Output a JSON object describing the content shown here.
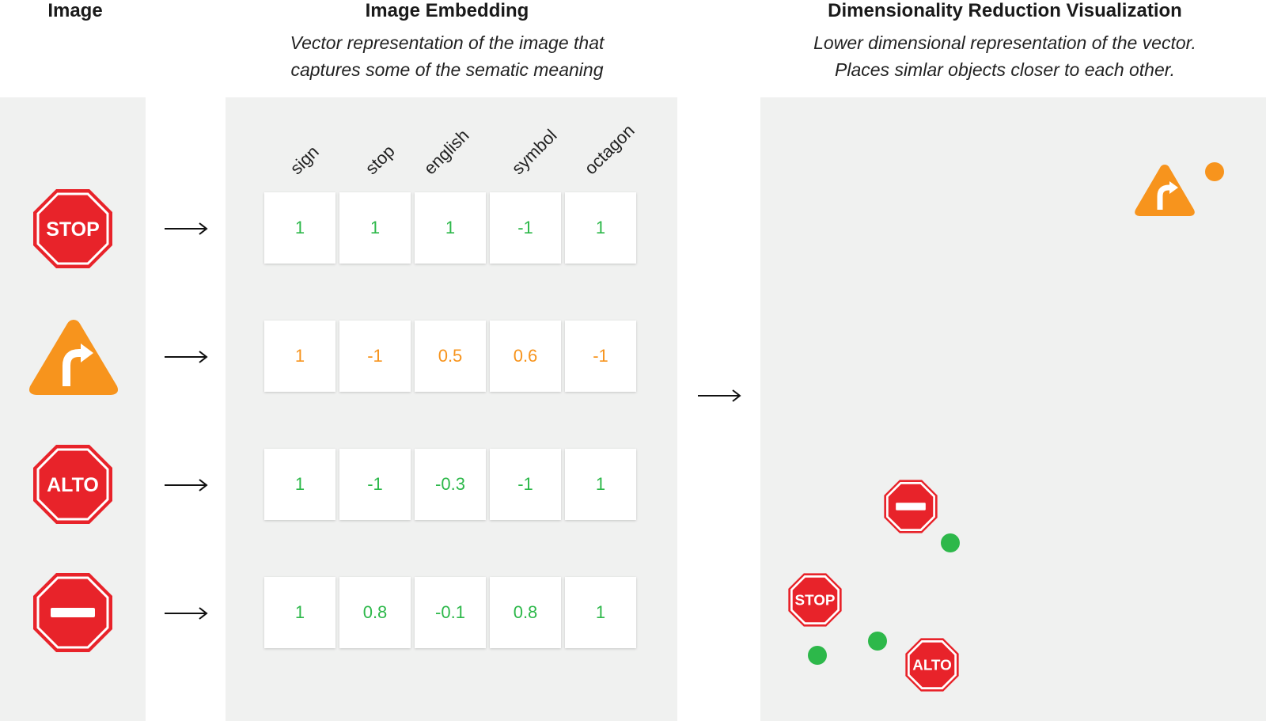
{
  "columns": [
    {
      "heading": "Image",
      "subtitle": []
    },
    {
      "heading": "Image Embedding",
      "subtitle": [
        "Vector representation of the image that",
        "captures some of the sematic meaning"
      ]
    },
    {
      "heading": "Dimensionality Reduction Visualization",
      "subtitle": [
        "Lower dimensional representation of the vector.",
        "Places simlar objects closer to each other."
      ]
    }
  ],
  "features": [
    "sign",
    "stop",
    "english",
    "symbol",
    "octagon"
  ],
  "rows": [
    {
      "icon": "stop-sign-icon",
      "sign_text": "STOP",
      "color": "#2db84a",
      "values": [
        "1",
        "1",
        "1",
        "-1",
        "1"
      ]
    },
    {
      "icon": "turn-right-sign-icon",
      "sign_text": "",
      "color": "#f7941d",
      "values": [
        "1",
        "-1",
        "0.5",
        "0.6",
        "-1"
      ]
    },
    {
      "icon": "alto-sign-icon",
      "sign_text": "ALTO",
      "color": "#2db84a",
      "values": [
        "1",
        "-1",
        "-0.3",
        "-1",
        "1"
      ]
    },
    {
      "icon": "do-not-enter-sign-icon",
      "sign_text": "",
      "color": "#2db84a",
      "values": [
        "1",
        "0.8",
        "-0.1",
        "0.8",
        "1"
      ]
    }
  ],
  "scatter": {
    "labels": {
      "stop": "STOP",
      "alto": "ALTO"
    },
    "colors": {
      "sign_red": "#e8232a",
      "sign_orange": "#f7941d",
      "dot_green": "#2db84a",
      "dot_orange": "#f7941d"
    }
  }
}
